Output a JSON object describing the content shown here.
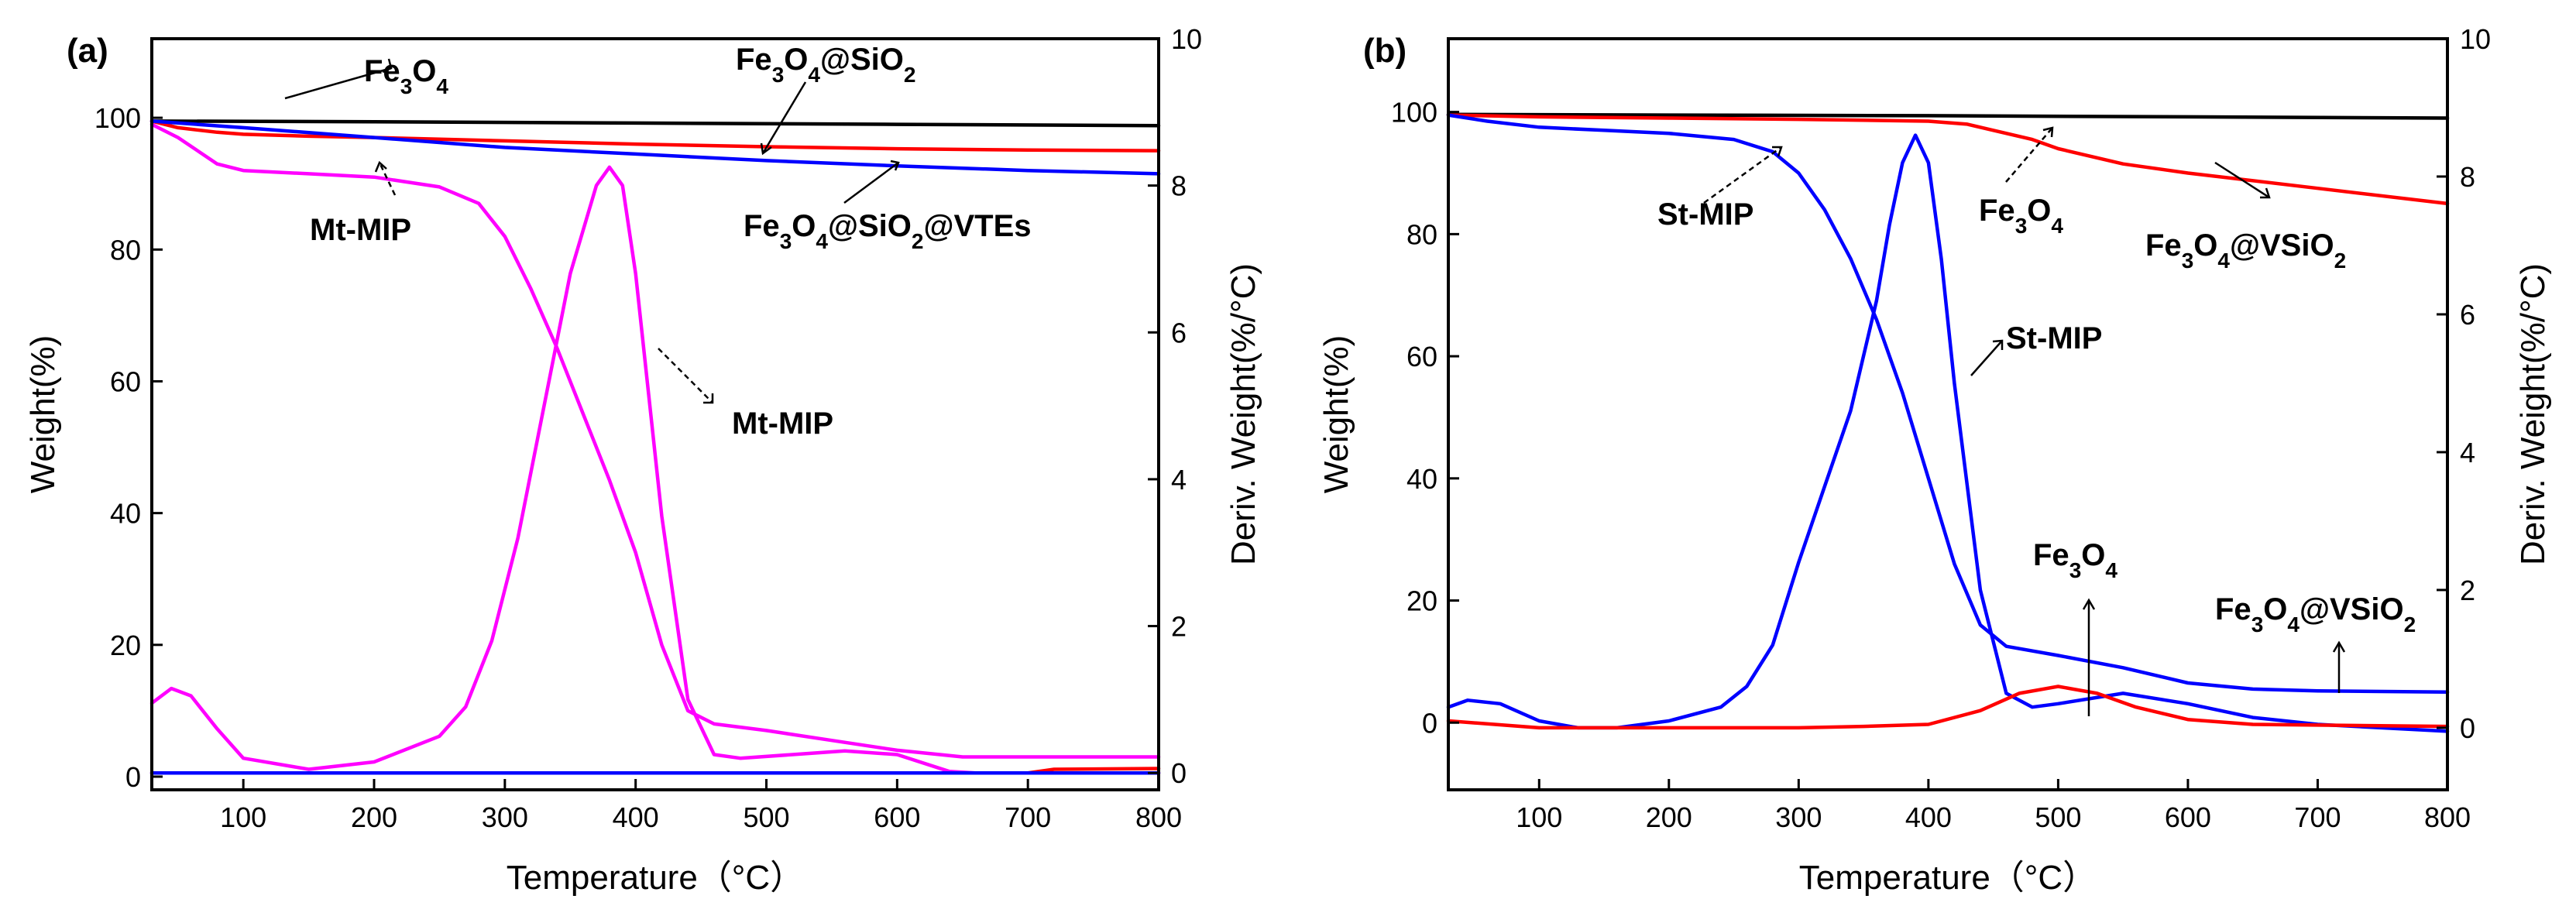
{
  "chart_data": [
    {
      "type": "line",
      "panel_label": "(a)",
      "xlabel": "Temperature（°C）",
      "ylabel": "Weight(%)",
      "y2label": "Deriv. Weight(%/°C)",
      "xlim": [
        30,
        800
      ],
      "ylim": [
        -2,
        112
      ],
      "y2lim": [
        -0.23,
        10
      ],
      "xticks": [
        "100",
        "200",
        "300",
        "400",
        "500",
        "600",
        "700",
        "800"
      ],
      "yticks": [
        "0",
        "20",
        "40",
        "60",
        "80",
        "100"
      ],
      "y2ticks": [
        "0",
        "2",
        "4",
        "6",
        "8",
        "10"
      ],
      "colors": {
        "Fe3O4": "#000000",
        "Fe3O4@SiO2": "#ff0000",
        "Fe3O4@SiO2@VTEs": "#0000ff",
        "Mt-MIP": "#ff00ff"
      },
      "series": [
        {
          "name": "Fe3O4",
          "color_key": "Fe3O4",
          "axis": "weight",
          "x": [
            30,
            200,
            400,
            600,
            800
          ],
          "y": [
            99.5,
            99.4,
            99.2,
            99.0,
            98.8
          ]
        },
        {
          "name": "Fe3O4@SiO2",
          "color_key": "Fe3O4@SiO2",
          "axis": "weight",
          "x": [
            30,
            50,
            80,
            100,
            150,
            200,
            300,
            400,
            500,
            600,
            700,
            800
          ],
          "y": [
            99.5,
            98.5,
            97.8,
            97.5,
            97.2,
            97.0,
            96.5,
            96.0,
            95.6,
            95.3,
            95.1,
            95.0
          ]
        },
        {
          "name": "Fe3O4@SiO2@VTEs",
          "color_key": "Fe3O4@SiO2@VTEs",
          "axis": "weight",
          "x": [
            30,
            100,
            200,
            300,
            400,
            500,
            600,
            700,
            800
          ],
          "y": [
            99.5,
            98.5,
            97.0,
            95.5,
            94.5,
            93.5,
            92.7,
            92.0,
            91.5
          ]
        },
        {
          "name": "Mt-MIP",
          "color_key": "Mt-MIP",
          "axis": "weight",
          "x": [
            30,
            50,
            80,
            100,
            150,
            200,
            250,
            280,
            300,
            320,
            340,
            360,
            380,
            400,
            420,
            440,
            460,
            500,
            550,
            600,
            650,
            700,
            800
          ],
          "y": [
            99,
            97,
            93,
            92,
            91.5,
            91,
            89.5,
            87,
            82,
            74,
            65,
            55,
            45,
            34,
            20,
            10,
            8,
            7,
            5.5,
            4,
            3,
            3,
            3
          ]
        },
        {
          "name": "Mt-MIP deriv",
          "color_key": "Mt-MIP",
          "axis": "deriv",
          "x": [
            30,
            45,
            60,
            80,
            100,
            150,
            200,
            250,
            270,
            290,
            310,
            330,
            350,
            370,
            380,
            390,
            400,
            420,
            440,
            460,
            480,
            520,
            560,
            600,
            640,
            660,
            800
          ],
          "y": [
            0.95,
            1.15,
            1.05,
            0.6,
            0.2,
            0.05,
            0.15,
            0.5,
            0.9,
            1.8,
            3.2,
            5.0,
            6.8,
            8.0,
            8.25,
            8.0,
            6.8,
            3.5,
            1.0,
            0.25,
            0.2,
            0.25,
            0.3,
            0.25,
            0.02,
            0.0,
            0.0
          ]
        },
        {
          "name": "Fe3O4@SiO2 deriv",
          "color_key": "Fe3O4@SiO2",
          "axis": "deriv",
          "x": [
            30,
            700,
            720,
            800
          ],
          "y": [
            0.0,
            0.0,
            0.05,
            0.06
          ]
        },
        {
          "name": "Fe3O4@SiO2@VTEs deriv",
          "color_key": "Fe3O4@SiO2@VTEs",
          "axis": "deriv",
          "x": [
            30,
            400,
            800
          ],
          "y": [
            0.0,
            0.0,
            0.0
          ]
        }
      ],
      "annotations": [
        {
          "text_parts": [
            {
              "t": "Fe"
            },
            {
              "t": "3",
              "sub": true
            },
            {
              "t": "O"
            },
            {
              "t": "4",
              "sub": true
            }
          ]
        },
        {
          "text_parts": [
            {
              "t": "Fe"
            },
            {
              "t": "3",
              "sub": true
            },
            {
              "t": "O"
            },
            {
              "t": "4",
              "sub": true
            },
            {
              "t": "@SiO"
            },
            {
              "t": "2",
              "sub": true
            }
          ]
        },
        {
          "text_parts": [
            {
              "t": "Fe"
            },
            {
              "t": "3",
              "sub": true
            },
            {
              "t": "O"
            },
            {
              "t": "4",
              "sub": true
            },
            {
              "t": "@SiO"
            },
            {
              "t": "2",
              "sub": true
            },
            {
              "t": "@VTEs"
            }
          ]
        },
        {
          "text_parts": [
            {
              "t": "Mt-MIP"
            }
          ]
        },
        {
          "text_parts": [
            {
              "t": "Mt-MIP"
            }
          ]
        }
      ]
    },
    {
      "type": "line",
      "panel_label": "(b)",
      "xlabel": "Temperature（°C）",
      "ylabel": "Weight(%)",
      "y2label": "Deriv. Weight(%/°C)",
      "xlim": [
        30,
        800
      ],
      "ylim": [
        -11,
        112
      ],
      "y2lim": [
        -0.9,
        10
      ],
      "xticks": [
        "100",
        "200",
        "300",
        "400",
        "500",
        "600",
        "700",
        "800"
      ],
      "yticks": [
        "0",
        "20",
        "40",
        "60",
        "80",
        "100"
      ],
      "y2ticks": [
        "0",
        "2",
        "4",
        "6",
        "8",
        "10"
      ],
      "colors": {
        "Fe3O4": "#000000",
        "Fe3O4@VSiO2": "#ff0000",
        "St-MIP": "#0000ff"
      },
      "series": [
        {
          "name": "Fe3O4",
          "color_key": "Fe3O4",
          "axis": "weight",
          "x": [
            30,
            200,
            400,
            600,
            800
          ],
          "y": [
            99.6,
            99.5,
            99.4,
            99.2,
            99.0
          ]
        },
        {
          "name": "Fe3O4@VSiO2",
          "color_key": "Fe3O4@VSiO2",
          "axis": "weight",
          "x": [
            30,
            100,
            200,
            300,
            400,
            430,
            450,
            480,
            500,
            550,
            600,
            700,
            800
          ],
          "y": [
            99.5,
            99.2,
            99.0,
            98.8,
            98.5,
            98.0,
            97.0,
            95.5,
            94.0,
            91.5,
            90.0,
            87.5,
            85.0
          ]
        },
        {
          "name": "St-MIP",
          "color_key": "St-MIP",
          "axis": "weight",
          "x": [
            30,
            60,
            100,
            150,
            200,
            250,
            280,
            300,
            320,
            340,
            360,
            380,
            400,
            420,
            440,
            460,
            500,
            550,
            600,
            650,
            700,
            800
          ],
          "y": [
            99.5,
            98.5,
            97.5,
            97.0,
            96.5,
            95.5,
            93.5,
            90.0,
            84.0,
            76.0,
            66.0,
            54.0,
            40.0,
            26.0,
            16.0,
            12.5,
            11.0,
            9.0,
            6.5,
            5.5,
            5.2,
            5.0
          ]
        },
        {
          "name": "St-MIP deriv",
          "color_key": "St-MIP",
          "axis": "deriv",
          "x": [
            30,
            45,
            70,
            100,
            130,
            160,
            200,
            240,
            260,
            280,
            300,
            320,
            340,
            360,
            370,
            380,
            390,
            400,
            410,
            420,
            440,
            460,
            480,
            500,
            550,
            600,
            650,
            700,
            800
          ],
          "y": [
            0.3,
            0.4,
            0.35,
            0.1,
            0.0,
            0.0,
            0.1,
            0.3,
            0.6,
            1.2,
            2.4,
            3.5,
            4.6,
            6.2,
            7.3,
            8.2,
            8.6,
            8.2,
            6.8,
            5.0,
            2.0,
            0.5,
            0.3,
            0.35,
            0.5,
            0.35,
            0.15,
            0.05,
            -0.05
          ]
        },
        {
          "name": "Fe3O4@VSiO2 deriv",
          "color_key": "Fe3O4@VSiO2",
          "axis": "deriv",
          "x": [
            30,
            100,
            200,
            300,
            350,
            400,
            440,
            470,
            500,
            530,
            560,
            600,
            650,
            800
          ],
          "y": [
            0.1,
            0.0,
            0.0,
            0.0,
            0.02,
            0.05,
            0.25,
            0.5,
            0.6,
            0.5,
            0.3,
            0.12,
            0.05,
            0.02
          ]
        }
      ],
      "annotations": [
        {
          "text_parts": [
            {
              "t": "St-MIP"
            }
          ]
        },
        {
          "text_parts": [
            {
              "t": "Fe"
            },
            {
              "t": "3",
              "sub": true
            },
            {
              "t": "O"
            },
            {
              "t": "4",
              "sub": true
            }
          ]
        },
        {
          "text_parts": [
            {
              "t": "Fe"
            },
            {
              "t": "3",
              "sub": true
            },
            {
              "t": "O"
            },
            {
              "t": "4",
              "sub": true
            },
            {
              "t": "@VSiO"
            },
            {
              "t": "2",
              "sub": true
            }
          ]
        },
        {
          "text_parts": [
            {
              "t": "St-MIP"
            }
          ]
        },
        {
          "text_parts": [
            {
              "t": "Fe"
            },
            {
              "t": "3",
              "sub": true
            },
            {
              "t": "O"
            },
            {
              "t": "4",
              "sub": true
            }
          ]
        },
        {
          "text_parts": [
            {
              "t": "Fe"
            },
            {
              "t": "3",
              "sub": true
            },
            {
              "t": "O"
            },
            {
              "t": "4",
              "sub": true
            },
            {
              "t": "@VSiO"
            },
            {
              "t": "2",
              "sub": true
            }
          ]
        }
      ]
    }
  ]
}
